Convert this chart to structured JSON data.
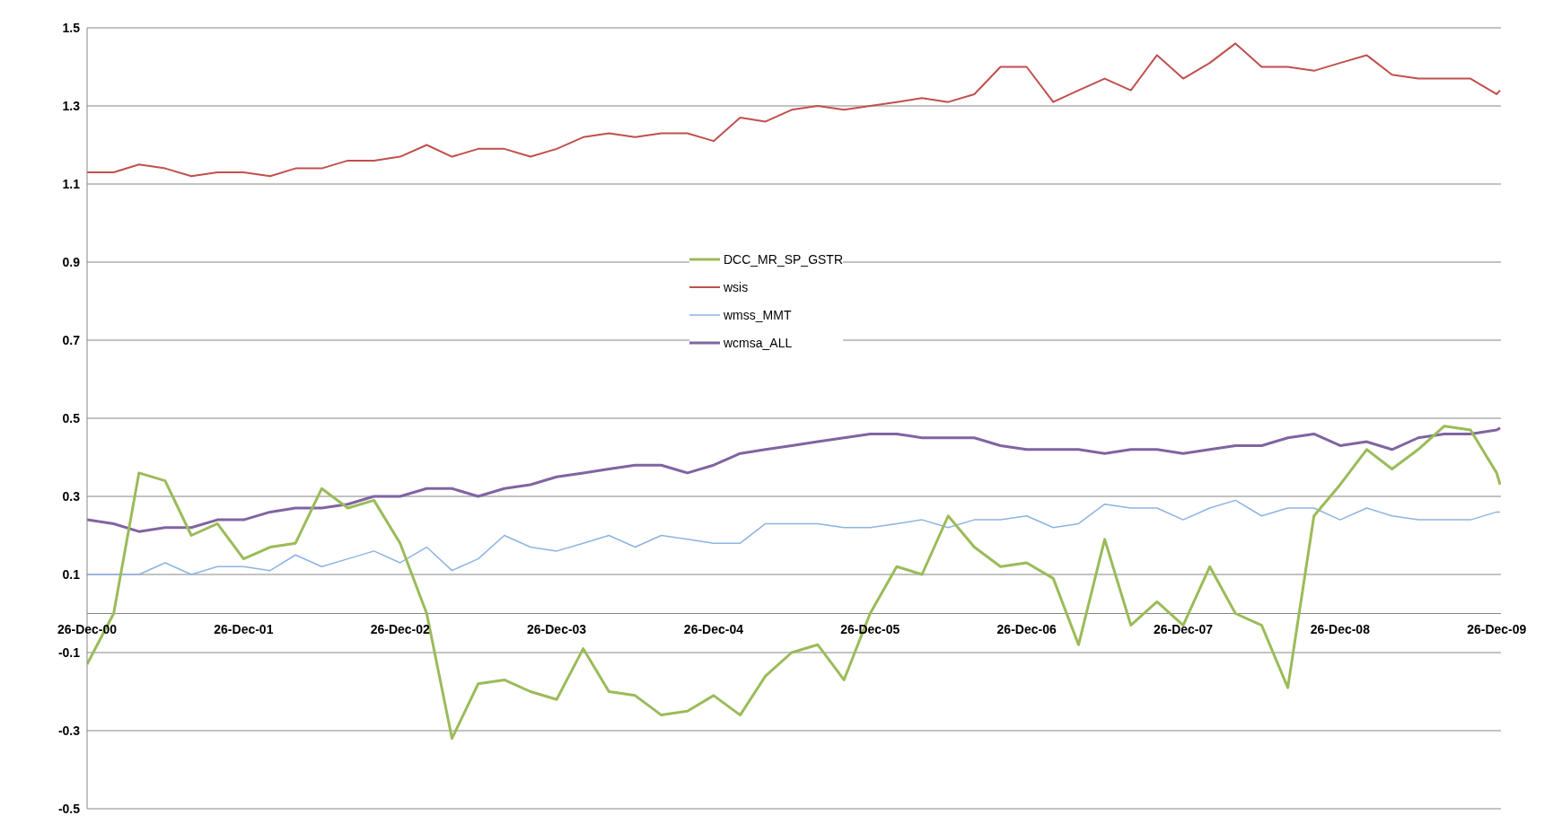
{
  "chart_data": {
    "type": "line",
    "x": [
      "2000-12-26",
      "2001-02-26",
      "2001-04-26",
      "2001-06-26",
      "2001-08-26",
      "2001-10-26",
      "2001-12-26",
      "2002-02-26",
      "2002-04-26",
      "2002-06-26",
      "2002-08-26",
      "2002-10-26",
      "2002-12-26",
      "2003-02-26",
      "2003-04-26",
      "2003-06-26",
      "2003-08-26",
      "2003-10-26",
      "2003-12-26",
      "2004-02-26",
      "2004-04-26",
      "2004-06-26",
      "2004-08-26",
      "2004-10-26",
      "2004-12-26",
      "2005-02-26",
      "2005-04-26",
      "2005-06-26",
      "2005-08-26",
      "2005-10-26",
      "2005-12-26",
      "2006-02-26",
      "2006-04-26",
      "2006-06-26",
      "2006-08-26",
      "2006-10-26",
      "2006-12-26",
      "2007-02-26",
      "2007-04-26",
      "2007-06-26",
      "2007-08-26",
      "2007-10-26",
      "2007-12-26",
      "2008-02-26",
      "2008-04-26",
      "2008-06-26",
      "2008-08-26",
      "2008-10-26",
      "2008-12-26",
      "2009-02-26",
      "2009-04-26",
      "2009-06-26",
      "2009-08-26",
      "2009-10-26",
      "2009-12-26",
      "2010-01-03"
    ],
    "series": [
      {
        "name": "DCC_MR_SP_GSTR",
        "color": "#9bbb59",
        "values": [
          -0.13,
          0.0,
          0.36,
          0.34,
          0.2,
          0.23,
          0.14,
          0.17,
          0.18,
          0.32,
          0.27,
          0.29,
          0.18,
          0.0,
          -0.32,
          -0.18,
          -0.17,
          -0.2,
          -0.22,
          -0.09,
          -0.2,
          -0.21,
          -0.26,
          -0.25,
          -0.21,
          -0.26,
          -0.16,
          -0.1,
          -0.08,
          -0.17,
          0.0,
          0.12,
          0.1,
          0.25,
          0.17,
          0.12,
          0.13,
          0.09,
          -0.08,
          0.19,
          -0.03,
          0.03,
          -0.03,
          0.12,
          0.0,
          -0.03,
          -0.19,
          0.25,
          0.33,
          0.42,
          0.37,
          0.42,
          0.48,
          0.47,
          0.36,
          0.33
        ]
      },
      {
        "name": "wsis",
        "color": "#c0504d",
        "values": [
          1.13,
          1.13,
          1.15,
          1.14,
          1.12,
          1.13,
          1.13,
          1.12,
          1.14,
          1.14,
          1.16,
          1.16,
          1.17,
          1.2,
          1.17,
          1.19,
          1.19,
          1.17,
          1.19,
          1.22,
          1.23,
          1.22,
          1.23,
          1.23,
          1.21,
          1.27,
          1.26,
          1.29,
          1.3,
          1.29,
          1.3,
          1.31,
          1.32,
          1.31,
          1.33,
          1.4,
          1.4,
          1.31,
          1.34,
          1.37,
          1.34,
          1.43,
          1.37,
          1.41,
          1.46,
          1.4,
          1.4,
          1.39,
          1.41,
          1.43,
          1.38,
          1.37,
          1.37,
          1.37,
          1.33,
          1.34
        ]
      },
      {
        "name": "wmss_MMT",
        "color": "#8db3e2",
        "values": [
          0.1,
          0.1,
          0.1,
          0.13,
          0.1,
          0.12,
          0.12,
          0.11,
          0.15,
          0.12,
          0.14,
          0.16,
          0.13,
          0.17,
          0.11,
          0.14,
          0.2,
          0.17,
          0.16,
          0.18,
          0.2,
          0.17,
          0.2,
          0.19,
          0.18,
          0.18,
          0.23,
          0.23,
          0.23,
          0.22,
          0.22,
          0.23,
          0.24,
          0.22,
          0.24,
          0.24,
          0.25,
          0.22,
          0.23,
          0.28,
          0.27,
          0.27,
          0.24,
          0.27,
          0.29,
          0.25,
          0.27,
          0.27,
          0.24,
          0.27,
          0.25,
          0.24,
          0.24,
          0.24,
          0.26,
          0.26
        ]
      },
      {
        "name": "wcmsa_ALL",
        "color": "#8064a2",
        "values": [
          0.24,
          0.23,
          0.21,
          0.22,
          0.22,
          0.24,
          0.24,
          0.26,
          0.27,
          0.27,
          0.28,
          0.3,
          0.3,
          0.32,
          0.32,
          0.3,
          0.32,
          0.33,
          0.35,
          0.36,
          0.37,
          0.38,
          0.38,
          0.36,
          0.38,
          0.41,
          0.42,
          0.43,
          0.44,
          0.45,
          0.46,
          0.46,
          0.45,
          0.45,
          0.45,
          0.43,
          0.42,
          0.42,
          0.42,
          0.41,
          0.42,
          0.42,
          0.41,
          0.42,
          0.43,
          0.43,
          0.45,
          0.46,
          0.43,
          0.44,
          0.42,
          0.45,
          0.46,
          0.46,
          0.47,
          0.475
        ]
      }
    ],
    "xlim": [
      "2000-12-26",
      "2010-01-05"
    ],
    "xticks": [
      {
        "value": "2000-12-26",
        "label": "26-Dec-00"
      },
      {
        "value": "2001-12-26",
        "label": "26-Dec-01"
      },
      {
        "value": "2002-12-26",
        "label": "26-Dec-02"
      },
      {
        "value": "2003-12-26",
        "label": "26-Dec-03"
      },
      {
        "value": "2004-12-26",
        "label": "26-Dec-04"
      },
      {
        "value": "2005-12-26",
        "label": "26-Dec-05"
      },
      {
        "value": "2006-12-26",
        "label": "26-Dec-06"
      },
      {
        "value": "2007-12-26",
        "label": "26-Dec-07"
      },
      {
        "value": "2008-12-26",
        "label": "26-Dec-08"
      },
      {
        "value": "2009-12-26",
        "label": "26-Dec-09"
      }
    ],
    "ylim": [
      -0.5,
      1.5
    ],
    "yticks": [
      -0.5,
      -0.3,
      -0.1,
      0.1,
      0.3,
      0.5,
      0.7,
      0.9,
      1.1,
      1.3,
      1.5
    ],
    "grid": "y",
    "legend": "center",
    "marker": "none",
    "line_style": "solid"
  }
}
